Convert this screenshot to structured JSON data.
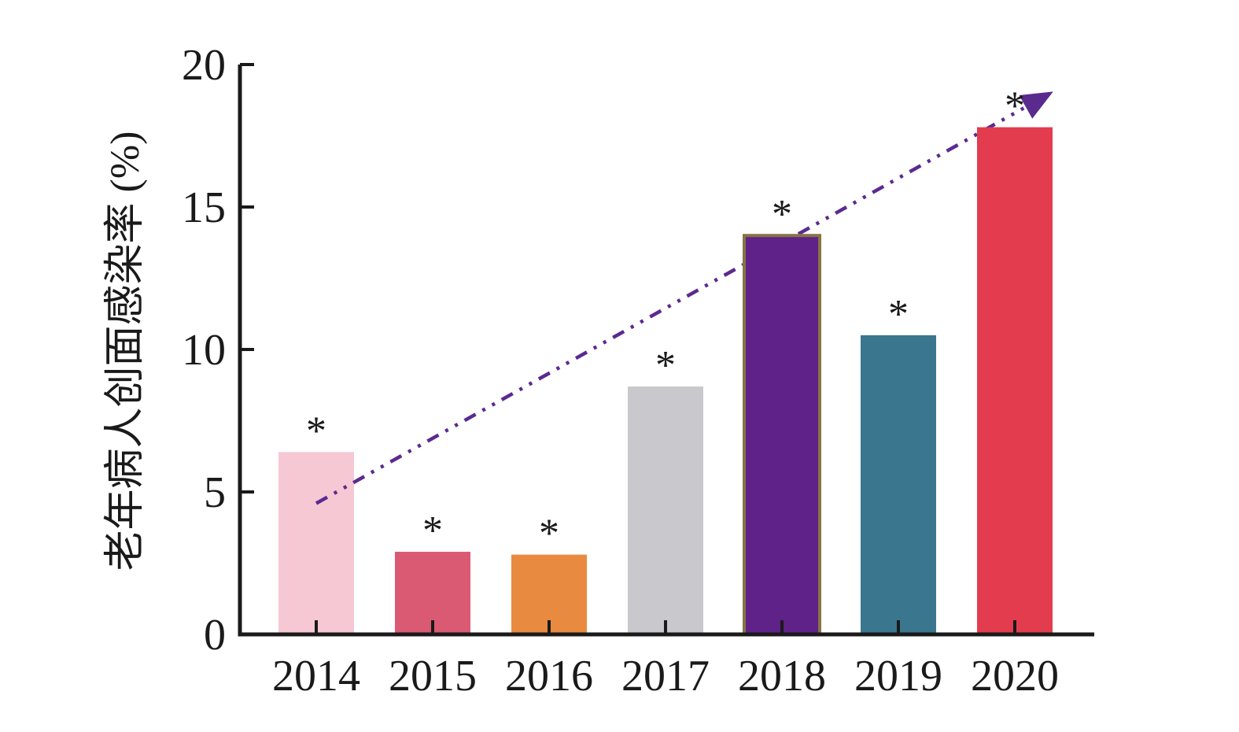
{
  "chart_data": {
    "type": "bar",
    "title": "",
    "xlabel": "",
    "ylabel": "老年病人创面感染率 (%)",
    "ylim": [
      0,
      20
    ],
    "yticks": [
      0,
      5,
      10,
      15,
      20
    ],
    "grid": false,
    "legend": null,
    "categories": [
      "2014",
      "2015",
      "2016",
      "2017",
      "2018",
      "2019",
      "2020"
    ],
    "values": [
      6.4,
      2.9,
      2.8,
      8.7,
      14.0,
      10.5,
      17.8
    ],
    "bar_colors": [
      "#f6c8d3",
      "#da5a74",
      "#e88b40",
      "#c9c8cd",
      "#5e2288",
      "#3a778e",
      "#e33c4f"
    ],
    "bar_edge_colors": [
      null,
      null,
      null,
      null,
      "#867445",
      null,
      null
    ],
    "significance_labels": [
      "*",
      "*",
      "*",
      "*",
      "*",
      "*",
      "*"
    ],
    "trend_line": {
      "color": "#5b2a8f",
      "style": "dash-dot-dot",
      "arrow": true,
      "x_start_index": 0,
      "y_start": 4.6,
      "x_end_index": 6.33,
      "y_end": 19.05
    },
    "axis_color": "#1a1a1a"
  }
}
